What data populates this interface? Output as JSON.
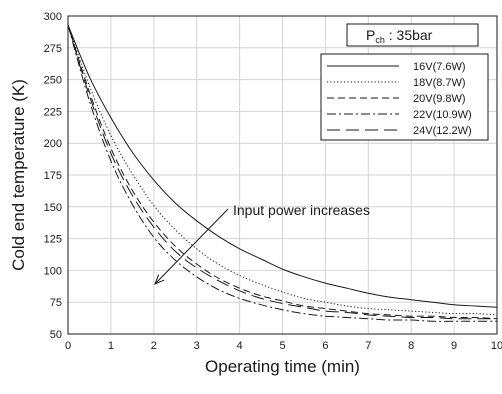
{
  "chart_data": {
    "type": "line",
    "xlabel": "Operating time (min)",
    "ylabel": "Cold end temperature (K)",
    "xlim": [
      0,
      10
    ],
    "ylim": [
      50,
      300
    ],
    "xticks": [
      0,
      1,
      2,
      3,
      4,
      5,
      6,
      7,
      8,
      9,
      10
    ],
    "yticks": [
      50,
      75,
      100,
      125,
      150,
      175,
      200,
      225,
      250,
      275,
      300
    ],
    "grid": true,
    "legend_position": "top-right",
    "condition_label": {
      "main": "P",
      "sub": "ch",
      "rest": " : 35bar"
    },
    "annotation": "Input power increases",
    "series": [
      {
        "name": "16V(7.6W)",
        "dash": "solid",
        "x": [
          0,
          0.5,
          1,
          1.5,
          2,
          2.5,
          3,
          3.5,
          4,
          4.5,
          5,
          5.5,
          6,
          6.5,
          7,
          7.5,
          8,
          8.5,
          9,
          9.5,
          10
        ],
        "y": [
          293,
          252,
          220,
          193,
          171,
          153,
          139,
          127,
          117,
          109,
          101,
          95,
          90,
          86,
          82,
          79,
          77,
          75,
          73,
          72,
          71
        ]
      },
      {
        "name": "18V(8.7W)",
        "dash": "dotted",
        "x": [
          0,
          0.5,
          1,
          1.5,
          2,
          2.5,
          3,
          3.5,
          4,
          4.5,
          5,
          5.5,
          6,
          6.5,
          7,
          7.5,
          8,
          8.5,
          9,
          9.5,
          10
        ],
        "y": [
          293,
          245,
          206,
          176,
          151,
          132,
          117,
          105,
          96,
          89,
          83,
          78,
          75,
          72,
          70,
          69,
          68,
          67,
          66,
          66,
          65
        ]
      },
      {
        "name": "20V(9.8W)",
        "dash": "dashed",
        "x": [
          0,
          0.5,
          1,
          1.5,
          2,
          2.5,
          3,
          3.5,
          4,
          4.5,
          5,
          5.5,
          6,
          6.5,
          7,
          7.5,
          8,
          8.5,
          9,
          9.5,
          10
        ],
        "y": [
          293,
          240,
          196,
          163,
          138,
          119,
          105,
          94,
          86,
          80,
          76,
          72,
          70,
          68,
          66,
          65,
          64,
          64,
          63,
          63,
          62
        ]
      },
      {
        "name": "22V(10.9W)",
        "dash": "dashdot",
        "x": [
          0,
          0.5,
          1,
          1.5,
          2,
          2.5,
          3,
          3.5,
          4,
          4.5,
          5,
          5.5,
          6,
          6.5,
          7,
          7.5,
          8,
          8.5,
          9,
          9.5,
          10
        ],
        "y": [
          293,
          233,
          186,
          152,
          126,
          108,
          95,
          85,
          78,
          73,
          69,
          66,
          64,
          63,
          62,
          61,
          61,
          60,
          60,
          60,
          60
        ]
      },
      {
        "name": "24V(12.2W)",
        "dash": "longdash",
        "x": [
          0,
          0.5,
          1,
          1.5,
          2,
          2.5,
          3,
          3.5,
          4,
          4.5,
          5,
          5.5,
          6,
          6.5,
          7,
          7.5,
          8,
          8.5,
          9,
          9.5,
          10
        ],
        "y": [
          293,
          237,
          192,
          159,
          134,
          115,
          102,
          92,
          84,
          78,
          74,
          71,
          68,
          67,
          65,
          64,
          63,
          63,
          62,
          62,
          62
        ]
      }
    ]
  }
}
